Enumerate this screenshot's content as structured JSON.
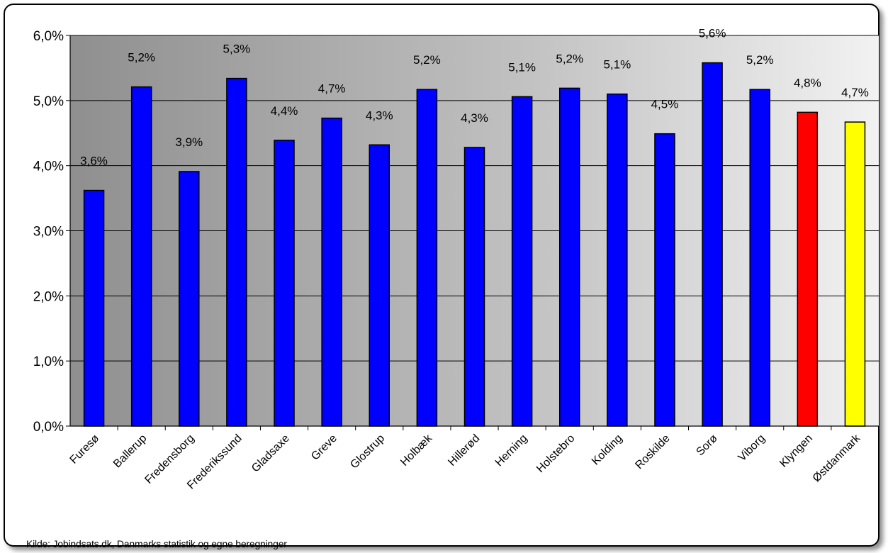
{
  "chart_data": {
    "type": "bar",
    "title": "",
    "xlabel": "",
    "ylabel": "",
    "ylim": [
      0,
      6
    ],
    "yticks": [
      "0,0%",
      "1,0%",
      "2,0%",
      "3,0%",
      "4,0%",
      "5,0%",
      "6,0%"
    ],
    "grid": true,
    "categories": [
      "Furesø",
      "Ballerup",
      "Fredensborg",
      "Frederikssund",
      "Gladsaxe",
      "Greve",
      "Glostrup",
      "Holbæk",
      "Hillerød",
      "Herning",
      "Holstebro",
      "Kolding",
      "Roskilde",
      "Sorø",
      "Viborg",
      "Klyngen",
      "Østdanmark"
    ],
    "values": [
      3.62,
      5.21,
      3.91,
      5.34,
      4.39,
      4.73,
      4.32,
      5.17,
      4.28,
      5.06,
      5.19,
      5.1,
      4.49,
      5.58,
      5.17,
      4.82,
      4.67
    ],
    "data_labels": [
      "3,6%",
      "5,2%",
      "3,9%",
      "5,3%",
      "4,4%",
      "4,7%",
      "4,3%",
      "5,2%",
      "4,3%",
      "5,1%",
      "5,2%",
      "5,1%",
      "4,5%",
      "5,6%",
      "5,2%",
      "4,8%",
      "4,7%"
    ],
    "bar_colors": [
      "#0000ff",
      "#0000ff",
      "#0000ff",
      "#0000ff",
      "#0000ff",
      "#0000ff",
      "#0000ff",
      "#0000ff",
      "#0000ff",
      "#0000ff",
      "#0000ff",
      "#0000ff",
      "#0000ff",
      "#0000ff",
      "#0000ff",
      "#ff0000",
      "#ffff00"
    ]
  },
  "source_text": "Kilde: Jobindsats.dk, Danmarks statistik og egne beregninger"
}
